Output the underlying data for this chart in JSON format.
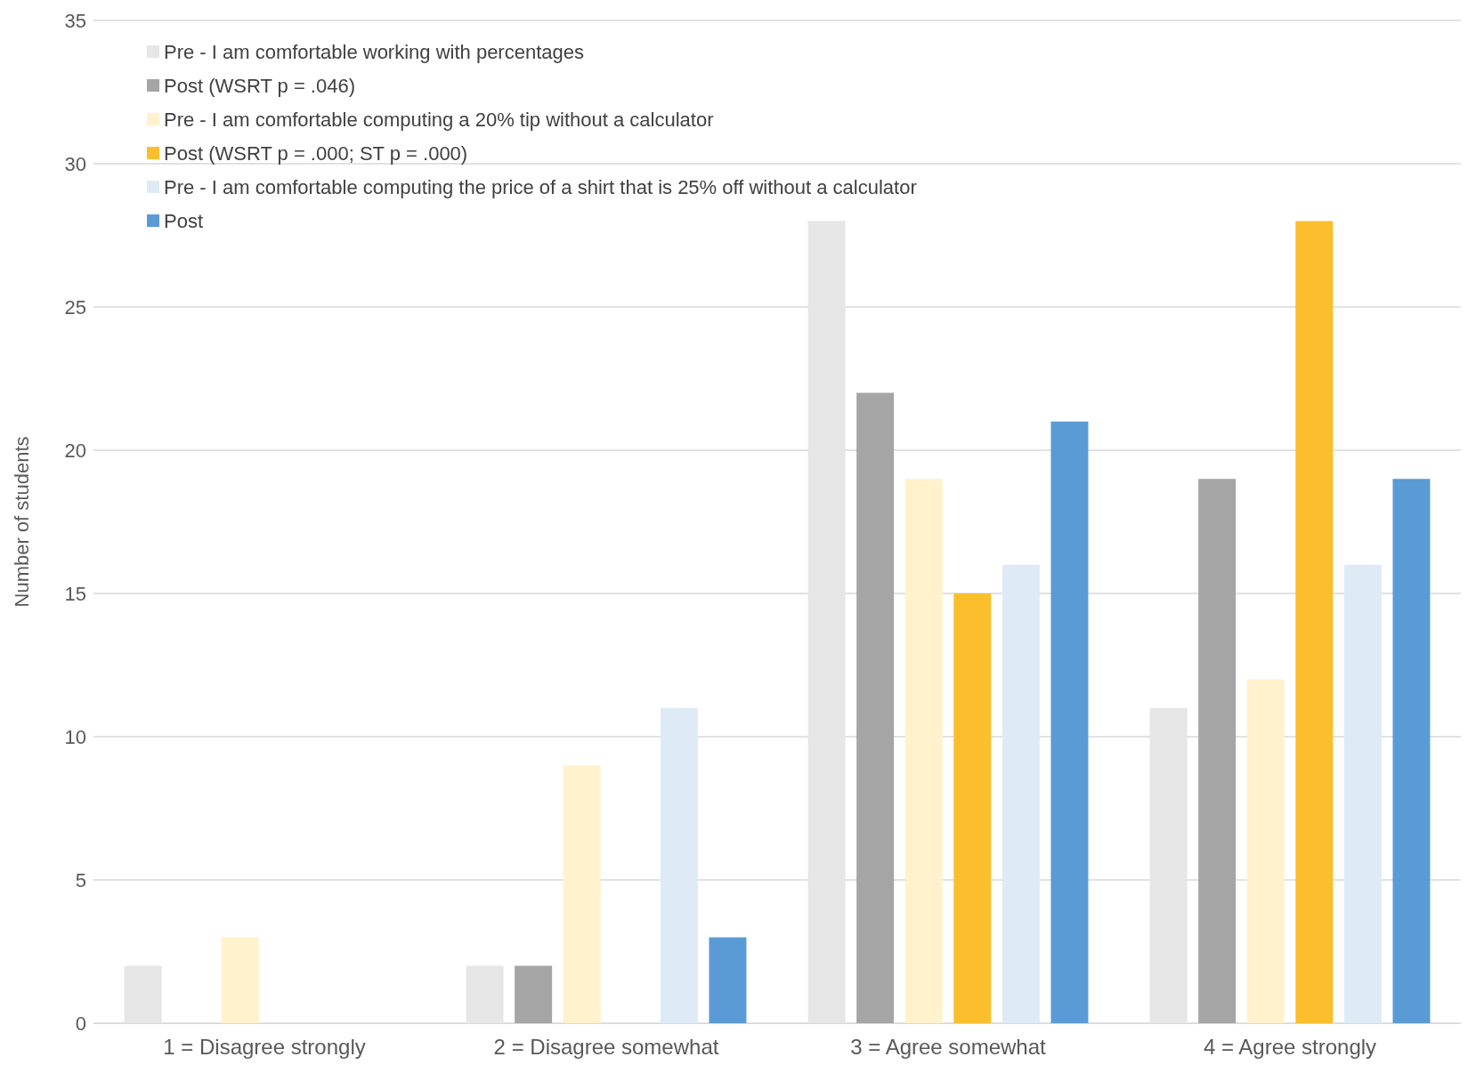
{
  "chart_data": {
    "type": "bar",
    "ylabel": "Number of students",
    "categories": [
      "1 = Disagree strongly",
      "2 = Disagree somewhat",
      "3 = Agree somewhat",
      "4 = Agree strongly"
    ],
    "series": [
      {
        "name": "Pre - I am comfortable working with percentages",
        "color": "#e7e6e6",
        "values": [
          2,
          2,
          28,
          11
        ]
      },
      {
        "name": "Post (WSRT p = .046)",
        "color": "#a5a5a5",
        "values": [
          0,
          2,
          22,
          19
        ]
      },
      {
        "name": "Pre - I am comfortable computing a 20% tip without a calculator",
        "color": "#fff2cc",
        "values": [
          3,
          9,
          19,
          12
        ]
      },
      {
        "name": "Post (WSRT p = .000; ST p = .000)",
        "color": "#fbbf2d",
        "values": [
          0,
          0,
          15,
          28
        ]
      },
      {
        "name": "Pre - I am comfortable computing the price of a shirt that is 25% off without a calculator",
        "color": "#deebf7",
        "values": [
          0,
          11,
          16,
          16
        ]
      },
      {
        "name": "Post",
        "color": "#5b9bd5",
        "values": [
          0,
          3,
          21,
          19
        ]
      }
    ],
    "ylim": [
      0,
      35
    ],
    "yticks": [
      0,
      5,
      10,
      15,
      20,
      25,
      30,
      35
    ],
    "grid": "y",
    "legend": "top left"
  }
}
